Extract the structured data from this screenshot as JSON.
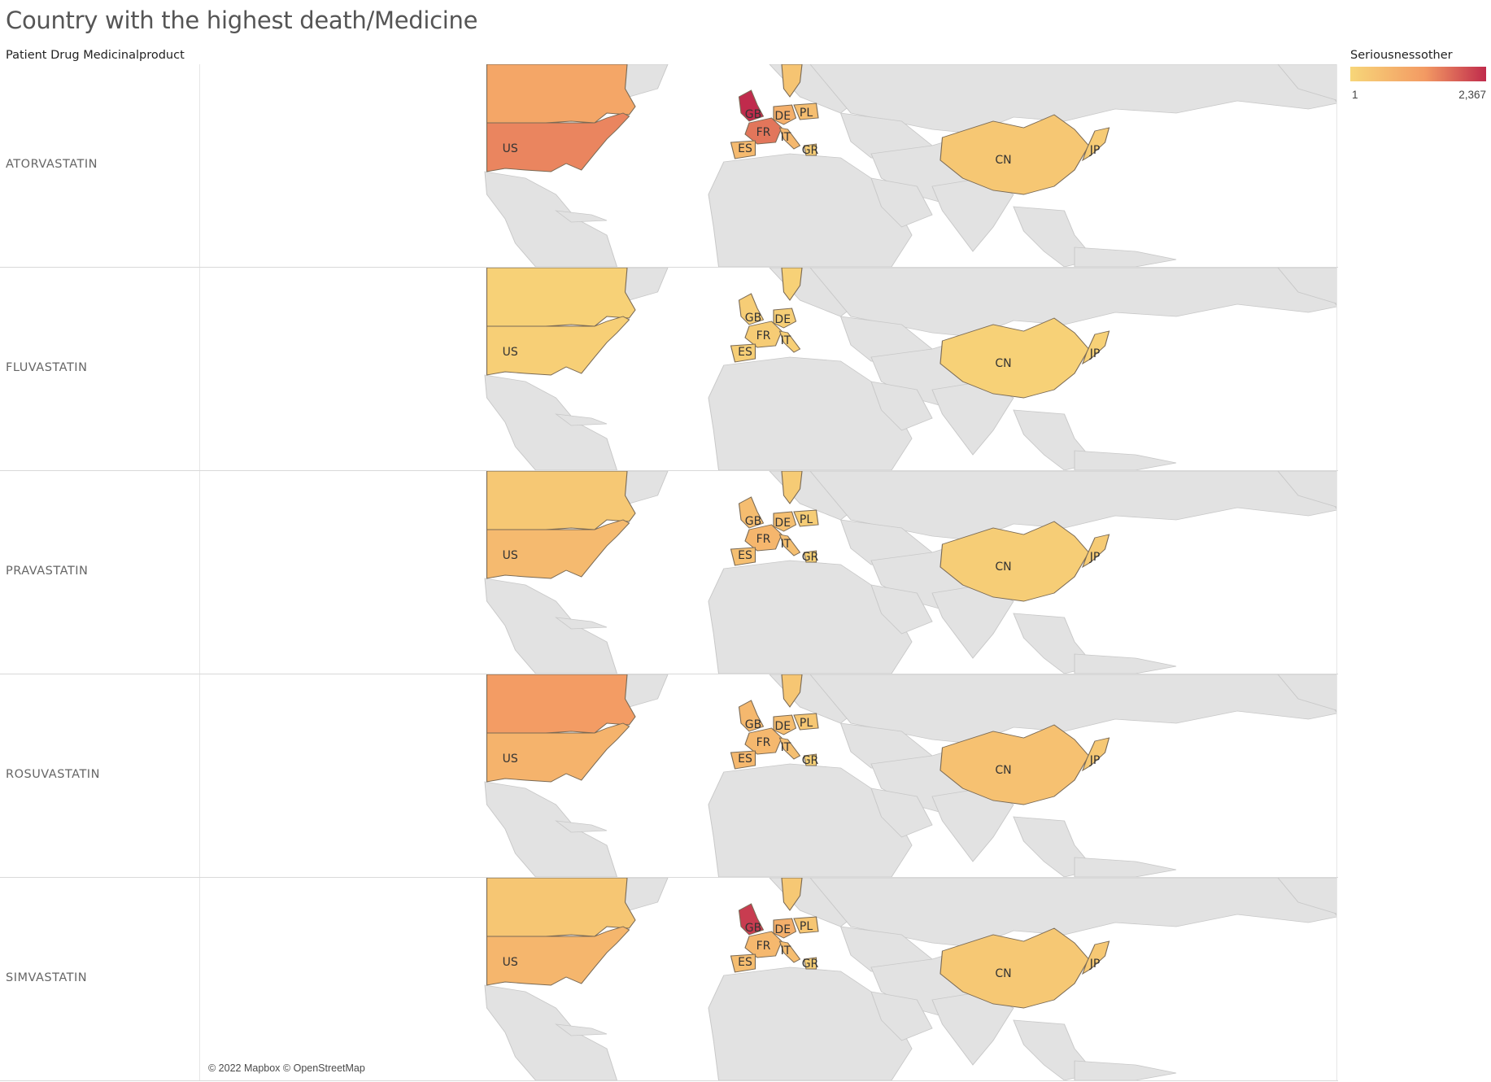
{
  "title": "Country with the highest death/Medicine",
  "row_header": "Patient Drug Medicinalproduct",
  "legend": {
    "title": "Seriousnessother",
    "min_label": "1",
    "max_label": "2,367",
    "min_value": 1,
    "max_value": 2367,
    "color_low": "#f7d679",
    "color_mid": "#f39a63",
    "color_high": "#c02b4c"
  },
  "attribution": "© 2022 Mapbox © OpenStreetMap",
  "map_colors": {
    "land": "#e2e2e2",
    "border": "#c8c8c8",
    "country_outline": "#7a6a55"
  },
  "facets": [
    {
      "drug": "ATORVASTATIN",
      "countries": {
        "US": 1500,
        "CA": 1050,
        "GB": 2367,
        "FR": 1650,
        "DE": 850,
        "PL": 520,
        "IT": 650,
        "ES": 600,
        "GR": 200,
        "CN": 330,
        "JP": 250,
        "SE": 400
      }
    },
    {
      "drug": "FLUVASTATIN",
      "countries": {
        "US": 150,
        "CA": 120,
        "GB": 200,
        "FR": 220,
        "DE": 180,
        "IT": 150,
        "ES": 170,
        "CN": 120,
        "JP": 110,
        "SE": 110
      }
    },
    {
      "drug": "PRAVASTATIN",
      "countries": {
        "US": 600,
        "CA": 300,
        "GB": 550,
        "FR": 700,
        "DE": 500,
        "PL": 200,
        "IT": 500,
        "ES": 500,
        "GR": 100,
        "CN": 200,
        "JP": 250,
        "SE": 250
      }
    },
    {
      "drug": "ROSUVASTATIN",
      "countries": {
        "US": 750,
        "CA": 1250,
        "GB": 650,
        "FR": 650,
        "DE": 550,
        "PL": 330,
        "IT": 500,
        "ES": 650,
        "GR": 100,
        "CN": 450,
        "JP": 300,
        "SE": 350
      }
    },
    {
      "drug": "SIMVASTATIN",
      "countries": {
        "US": 700,
        "CA": 350,
        "GB": 2200,
        "FR": 650,
        "DE": 850,
        "PL": 350,
        "IT": 550,
        "ES": 550,
        "GR": 150,
        "CN": 300,
        "JP": 300,
        "SE": 300
      }
    }
  ]
}
